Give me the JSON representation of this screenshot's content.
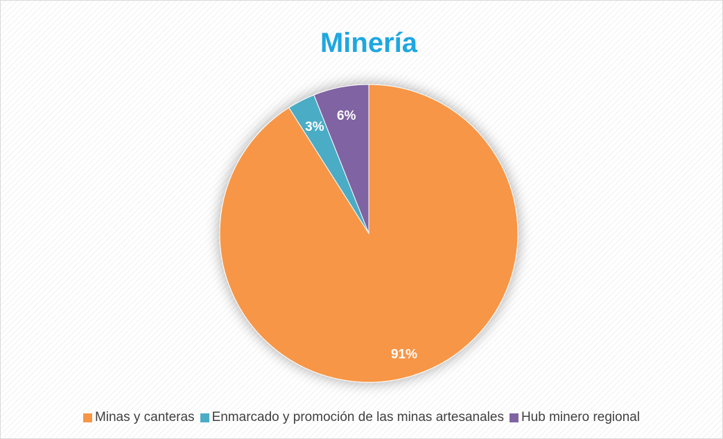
{
  "chart_data": {
    "type": "pie",
    "title": "Minería",
    "categories": [
      "Minas y canteras",
      "Enmarcado y promoción de las minas artesanales",
      "Hub minero regional"
    ],
    "values": [
      91,
      3,
      6
    ],
    "value_labels": [
      "91%",
      "3%",
      "6%"
    ],
    "colors": [
      "#F79646",
      "#4BACC6",
      "#8064A2"
    ],
    "legend": "bottom"
  }
}
